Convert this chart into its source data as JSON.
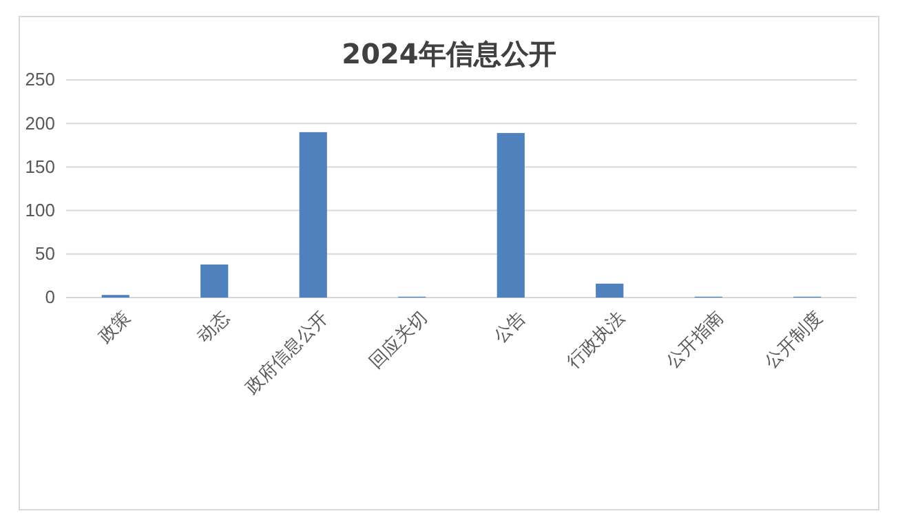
{
  "chart_data": {
    "type": "bar",
    "title": "2024年信息公开",
    "categories": [
      "政策",
      "动态",
      "政府信息公开",
      "回应关切",
      "公告",
      "行政执法",
      "公开指南",
      "公开制度"
    ],
    "values": [
      3,
      38,
      190,
      1,
      189,
      16,
      1,
      1
    ],
    "color": "#4f81bd",
    "ylim": [
      0,
      250
    ],
    "yticks": [
      0,
      50,
      100,
      150,
      200,
      250
    ],
    "grid": "y"
  }
}
